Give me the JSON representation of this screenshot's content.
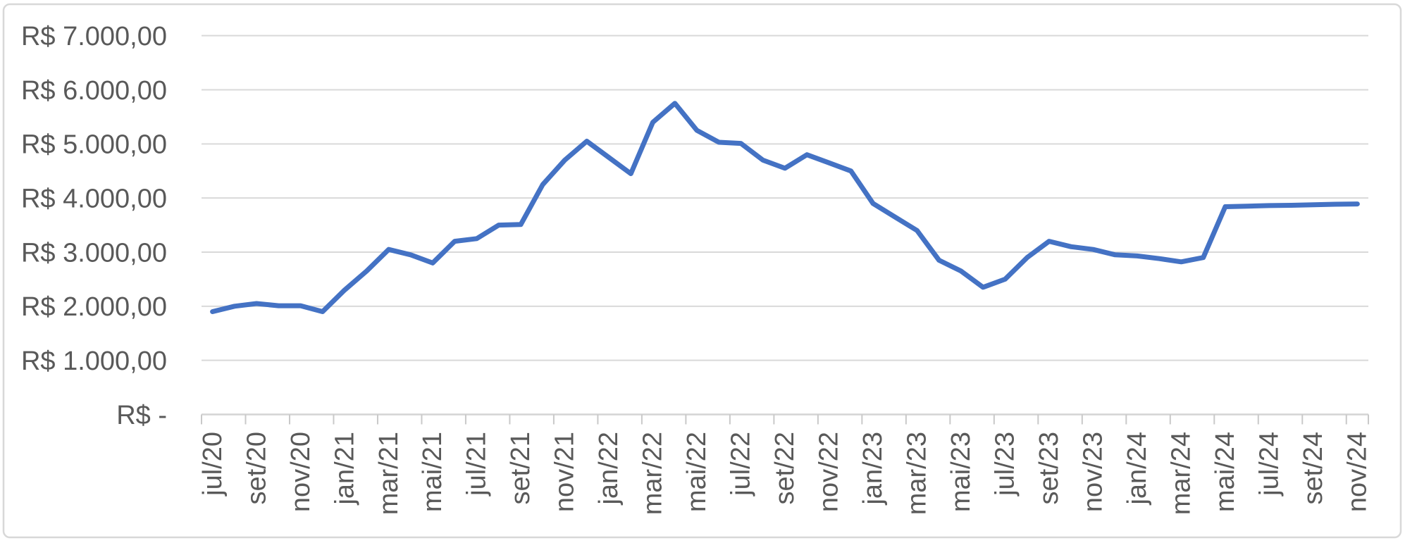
{
  "chart_data": {
    "type": "line",
    "title": "",
    "legend": "none",
    "grid": "horizontal",
    "ylim": [
      0,
      7000
    ],
    "y_major_unit": 1000,
    "x": [
      "jul/20",
      "ago/20",
      "set/20",
      "out/20",
      "nov/20",
      "dez/20",
      "jan/21",
      "fev/21",
      "mar/21",
      "abr/21",
      "mai/21",
      "jun/21",
      "jul/21",
      "ago/21",
      "set/21",
      "out/21",
      "nov/21",
      "dez/21",
      "jan/22",
      "fev/22",
      "mar/22",
      "abr/22",
      "mai/22",
      "jun/22",
      "jul/22",
      "ago/22",
      "set/22",
      "out/22",
      "nov/22",
      "dez/22",
      "jan/23",
      "fev/23",
      "mar/23",
      "abr/23",
      "mai/23",
      "jun/23",
      "jul/23",
      "ago/23",
      "set/23",
      "out/23",
      "nov/23",
      "dez/23",
      "jan/24",
      "fev/24",
      "mar/24",
      "abr/24",
      "mai/24",
      "jun/24",
      "jul/24",
      "ago/24",
      "set/24",
      "out/24",
      "nov/24"
    ],
    "series": [
      {
        "name": "valor",
        "values": [
          1900,
          2000,
          2050,
          2010,
          2010,
          1900,
          2300,
          2650,
          3050,
          2950,
          2800,
          3200,
          3250,
          3500,
          3510,
          4250,
          4700,
          5050,
          4750,
          4450,
          5400,
          5750,
          5250,
          5030,
          5010,
          4700,
          4550,
          4800,
          4650,
          4500,
          3900,
          3650,
          3400,
          2850,
          2650,
          2350,
          2500,
          2900,
          3200,
          3100,
          3050,
          2950,
          2930,
          2880,
          2820,
          2900,
          3840,
          3850,
          3860,
          3865,
          3875,
          3885,
          3890
        ]
      }
    ],
    "x_tick_labels": [
      "jul/20",
      "set/20",
      "nov/20",
      "jan/21",
      "mar/21",
      "mai/21",
      "jul/21",
      "set/21",
      "nov/21",
      "jan/22",
      "mar/22",
      "mai/22",
      "jul/22",
      "set/22",
      "nov/22",
      "jan/23",
      "mar/23",
      "mai/23",
      "jul/23",
      "set/23",
      "nov/23",
      "jan/24",
      "mar/24",
      "mai/24",
      "jul/24",
      "set/24",
      "nov/24"
    ],
    "x_label_every_n_months": 2,
    "y_tick_labels": [
      {
        "value": 7000,
        "label": "R$ 7.000,00"
      },
      {
        "value": 6000,
        "label": "R$ 6.000,00"
      },
      {
        "value": 5000,
        "label": "R$ 5.000,00"
      },
      {
        "value": 4000,
        "label": "R$ 4.000,00"
      },
      {
        "value": 3000,
        "label": "R$ 3.000,00"
      },
      {
        "value": 2000,
        "label": "R$ 2.000,00"
      },
      {
        "value": 1000,
        "label": "R$ 1.000,00"
      },
      {
        "value": 0,
        "label": "R$ -"
      }
    ],
    "colors": {
      "line": "#4472C4",
      "gridline": "#D9D9D9",
      "axis": "#D4D4D4",
      "tick": "#C9C9C9",
      "text": "#595959",
      "chart_border": "#D8D8D8",
      "background": "#FFFFFF"
    }
  }
}
